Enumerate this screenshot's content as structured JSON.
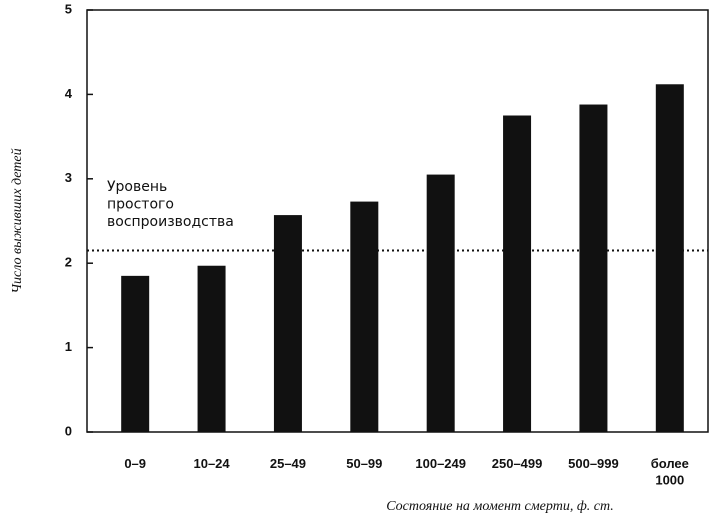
{
  "chart_data": {
    "type": "bar",
    "categories": [
      "0–9",
      "10–24",
      "25–49",
      "50–99",
      "100–249",
      "250–499",
      "500–999",
      "более 1000"
    ],
    "values": [
      1.85,
      1.97,
      2.57,
      2.73,
      3.05,
      3.75,
      3.88,
      4.12
    ],
    "color": "#111111",
    "ylim": [
      0,
      5
    ],
    "yticks": [
      0,
      1,
      2,
      3,
      4,
      5
    ],
    "ylabel": "Число выживших детей",
    "xlabel": "Состояние на момент смерти, ф. ст.",
    "reference_line": {
      "value": 2.15,
      "label": "Уровень простого воспроизводства"
    }
  }
}
